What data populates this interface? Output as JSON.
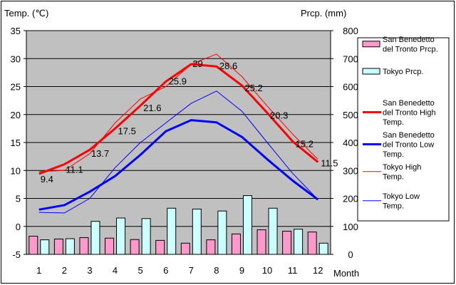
{
  "chart_data": {
    "type": "bar+line",
    "left_axis_title": "Temp. (℃)",
    "right_axis_title": "Prcp. (mm)",
    "x_axis_title": "Month",
    "categories": [
      "1",
      "2",
      "3",
      "4",
      "5",
      "6",
      "7",
      "8",
      "9",
      "10",
      "11",
      "12"
    ],
    "temp_ylim": [
      -5,
      35
    ],
    "temp_ticks": [
      "35",
      "30",
      "25",
      "20",
      "15",
      "10",
      "5",
      "0",
      "-5"
    ],
    "prcp_ylim": [
      0,
      800
    ],
    "prcp_ticks": [
      "800",
      "700",
      "600",
      "500",
      "400",
      "300",
      "200",
      "100",
      "0"
    ],
    "bar_series": [
      {
        "name": "San Benedetto del Tronto Prcp.",
        "legend_lines": [
          "San Benedetto",
          "del Tronto Prcp."
        ],
        "color": "#ff99cc",
        "values": [
          65,
          55,
          60,
          58,
          53,
          50,
          40,
          52,
          73,
          88,
          83,
          80
        ]
      },
      {
        "name": "Tokyo Prcp.",
        "legend_lines": [
          "Tokyo Prcp."
        ],
        "color": "#ccffff",
        "values": [
          52,
          56,
          118,
          130,
          128,
          165,
          162,
          155,
          210,
          165,
          90,
          40
        ]
      }
    ],
    "line_series": [
      {
        "name": "San Benedetto del Tronto High Temp.",
        "legend_lines": [
          "San Benedetto",
          "del Tronto High",
          "Temp."
        ],
        "color": "#ff0000",
        "width": 3,
        "values": [
          9.4,
          11.1,
          13.7,
          17.5,
          21.6,
          25.9,
          29,
          28.6,
          25.2,
          20.3,
          15.2,
          11.5
        ],
        "labels": [
          "9.4",
          "11.1",
          "13.7",
          "17.5",
          "21.6",
          "25.9",
          "29",
          "28.6",
          "25.2",
          "20.3",
          "15.2",
          "11.5"
        ]
      },
      {
        "name": "San Benedetto del Tronto Low Temp.",
        "legend_lines": [
          "San Benedetto",
          "del Tronto Low",
          "Temp."
        ],
        "color": "#0000ff",
        "width": 3,
        "values": [
          3.0,
          3.8,
          6.2,
          9.0,
          12.8,
          17.0,
          19.0,
          18.6,
          16.0,
          12.0,
          8.2,
          4.8
        ]
      },
      {
        "name": "Tokyo High Temp.",
        "legend_lines": [
          "Tokyo High",
          "Temp."
        ],
        "color": "#ff0000",
        "width": 1,
        "values": [
          9.8,
          10.0,
          13.0,
          18.5,
          22.8,
          25.0,
          29.0,
          30.8,
          26.8,
          21.5,
          16.5,
          12.0
        ]
      },
      {
        "name": "Tokyo Low Temp.",
        "legend_lines": [
          "Tokyo Low",
          "Temp."
        ],
        "color": "#0000ff",
        "width": 1,
        "values": [
          2.5,
          2.4,
          5.0,
          10.5,
          15.0,
          18.5,
          22.0,
          24.2,
          20.6,
          15.0,
          9.5,
          4.8
        ]
      }
    ]
  }
}
